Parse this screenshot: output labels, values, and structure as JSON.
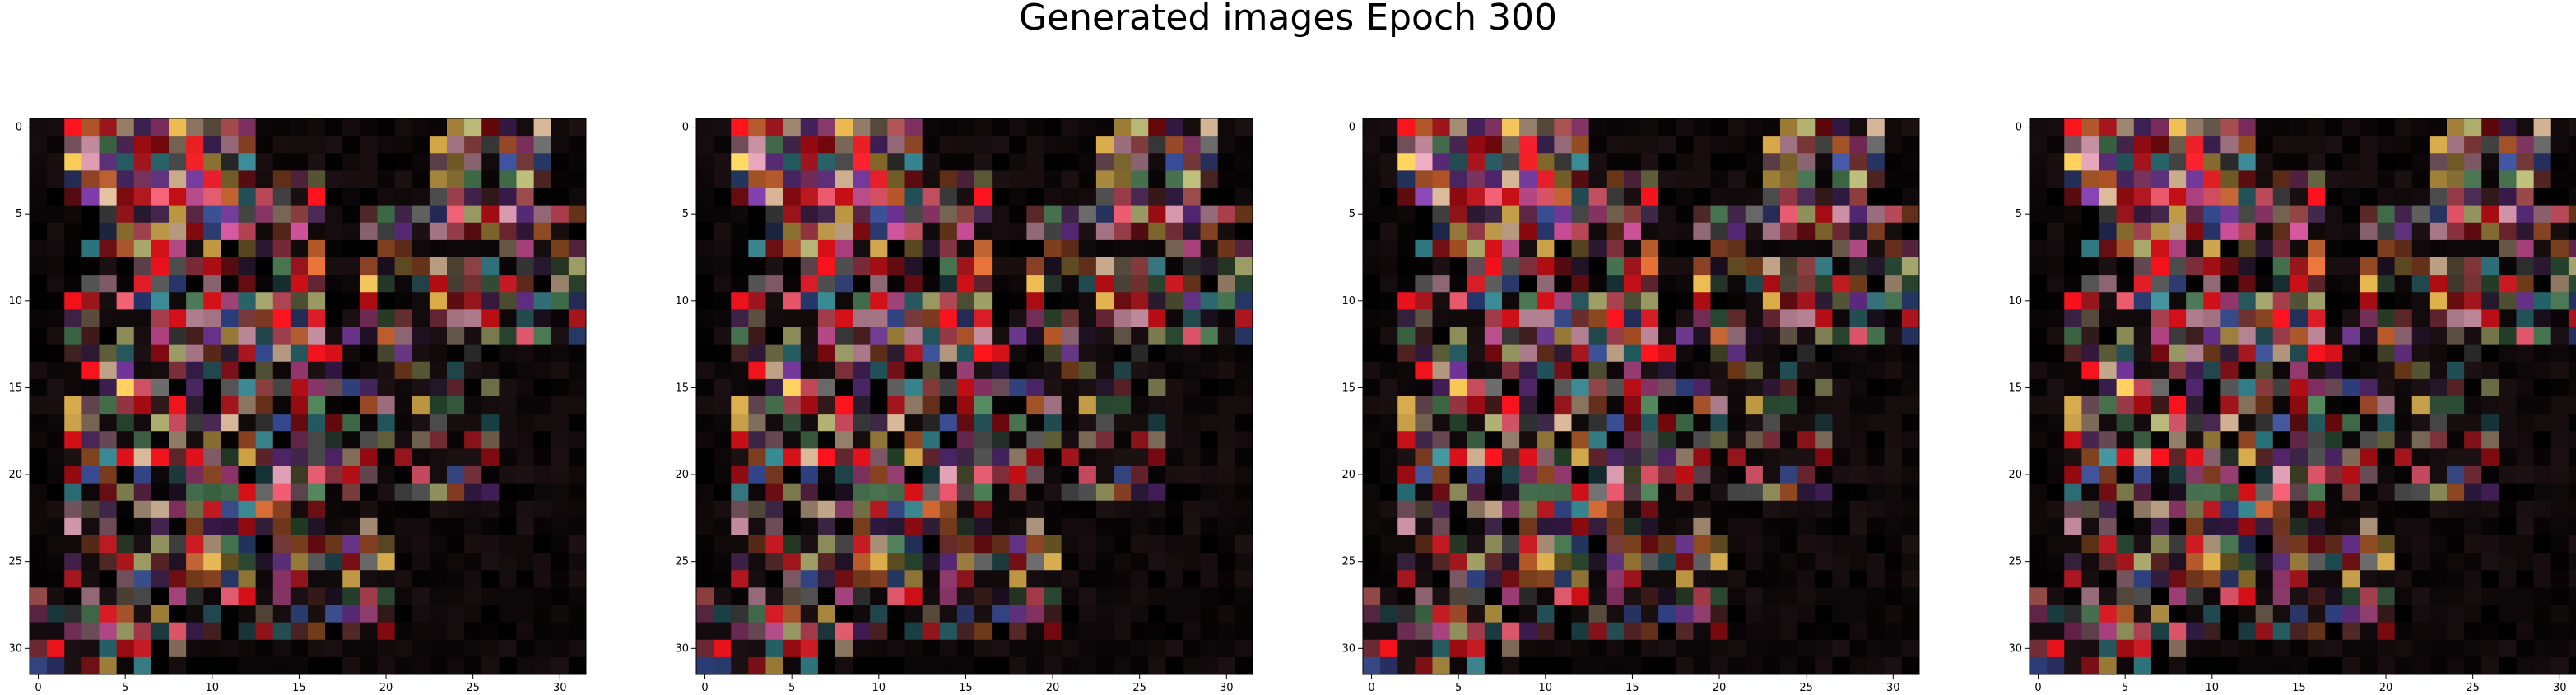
{
  "title": "Generated images Epoch 300",
  "image_count": 4,
  "grid_size": 32,
  "axes": {
    "x_ticks": [
      "0",
      "5",
      "10",
      "15",
      "20",
      "25",
      "30"
    ],
    "y_ticks": [
      "0",
      "5",
      "10",
      "15",
      "20",
      "25",
      "30"
    ]
  },
  "background_color": "#000000"
}
